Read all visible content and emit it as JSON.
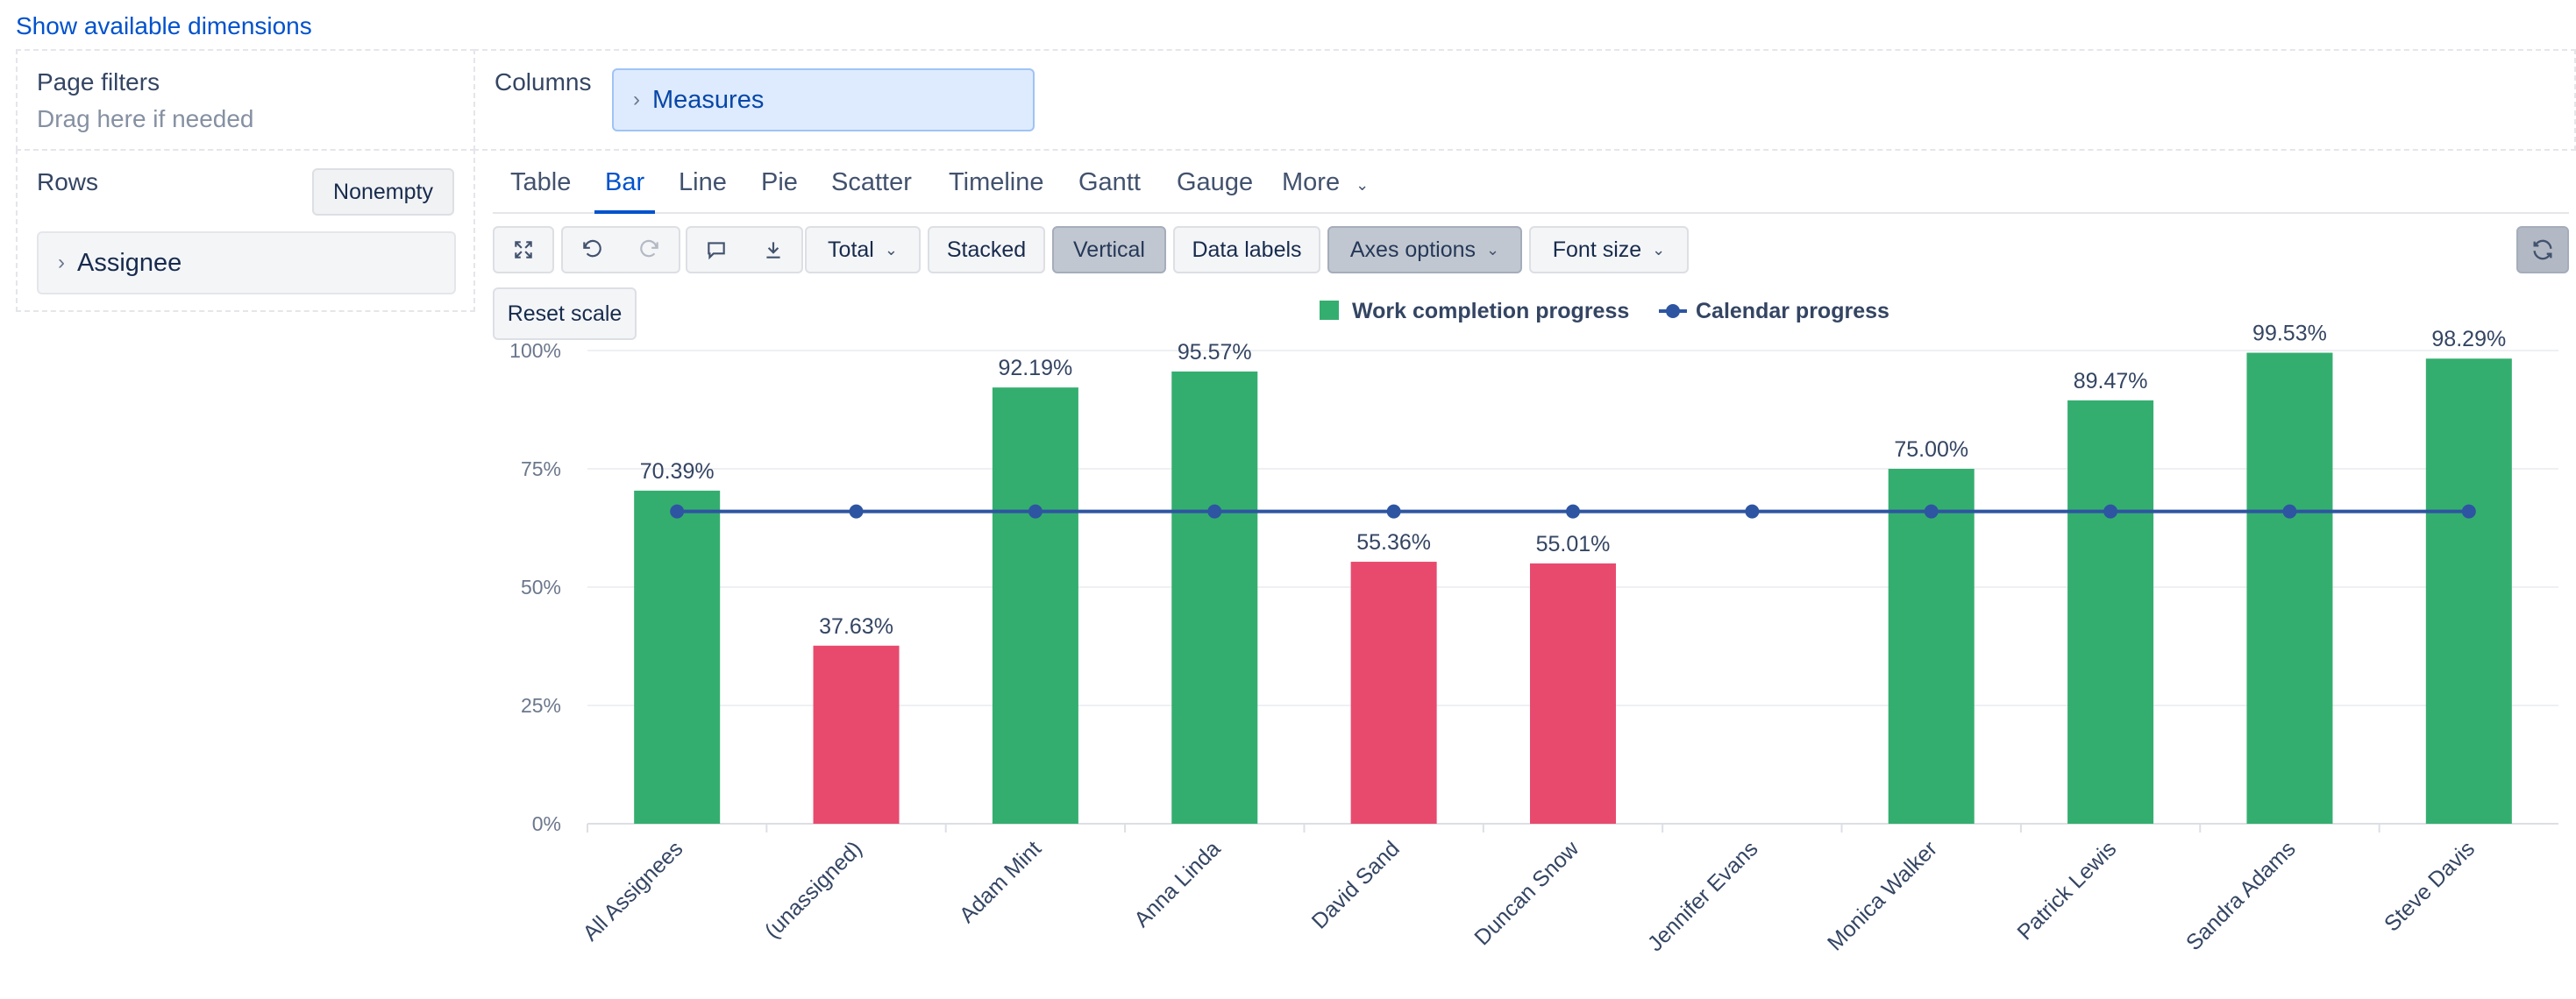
{
  "top_link": "Show available dimensions",
  "page_filters": {
    "title": "Page filters",
    "hint": "Drag here if needed"
  },
  "columns": {
    "title": "Columns",
    "chip": "Measures"
  },
  "rows": {
    "title": "Rows",
    "nonempty": "Nonempty",
    "chip": "Assignee"
  },
  "tabs": [
    "Table",
    "Bar",
    "Line",
    "Pie",
    "Scatter",
    "Timeline",
    "Gantt",
    "Gauge",
    "More"
  ],
  "active_tab": "Bar",
  "toolbar": {
    "total": "Total",
    "stacked": "Stacked",
    "vertical": "Vertical",
    "data_labels": "Data labels",
    "axes_options": "Axes options",
    "font_size": "Font size",
    "reset_scale": "Reset scale"
  },
  "icons": [
    "fullscreen-icon",
    "undo-icon",
    "redo-icon",
    "comment-icon",
    "download-icon",
    "refresh-icon",
    "chevron-right-icon",
    "chevron-down-icon"
  ],
  "colors": {
    "good": "#34ae6f",
    "bad": "#e84a6e",
    "line": "#2e55a1",
    "link": "#0052cc"
  },
  "chart_data": {
    "type": "bar",
    "categories": [
      "All Assignees",
      "(unassigned)",
      "Adam Mint",
      "Anna Linda",
      "David Sand",
      "Duncan Snow",
      "Jennifer Evans",
      "Monica Walker",
      "Patrick Lewis",
      "Sandra Adams",
      "Steve Davis"
    ],
    "series": [
      {
        "name": "Work completion progress",
        "type": "bar",
        "values": [
          70.39,
          37.63,
          92.19,
          95.57,
          55.36,
          55.01,
          null,
          75.0,
          89.47,
          99.53,
          98.29
        ],
        "labels": [
          "70.39%",
          "37.63%",
          "92.19%",
          "95.57%",
          "55.36%",
          "55.01%",
          "",
          "75.00%",
          "89.47%",
          "99.53%",
          "98.29%"
        ],
        "colors": [
          "#34ae6f",
          "#e84a6e",
          "#34ae6f",
          "#34ae6f",
          "#e84a6e",
          "#e84a6e",
          "#34ae6f",
          "#34ae6f",
          "#34ae6f",
          "#34ae6f",
          "#34ae6f"
        ]
      },
      {
        "name": "Calendar progress",
        "type": "line",
        "values": [
          66,
          66,
          66,
          66,
          66,
          66,
          66,
          66,
          66,
          66,
          66
        ]
      }
    ],
    "ylim": [
      0,
      100
    ],
    "yticks": [
      0,
      25,
      50,
      75,
      100
    ],
    "ytick_labels": [
      "0%",
      "25%",
      "50%",
      "75%",
      "100%"
    ],
    "legend_position": "top-center",
    "grid": true
  }
}
